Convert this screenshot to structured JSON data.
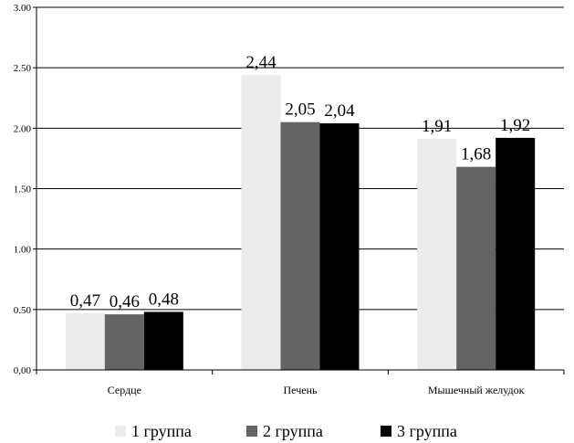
{
  "chart_data": {
    "type": "bar",
    "categories": [
      "Сердце",
      "Печень",
      "Мышечный желудок"
    ],
    "series": [
      {
        "name": "1 группа",
        "values": [
          0.47,
          2.44,
          1.91
        ],
        "labels": [
          "0,47",
          "2,44",
          "1,91"
        ],
        "color": "#ececec"
      },
      {
        "name": "2 группа",
        "values": [
          0.46,
          2.05,
          1.68
        ],
        "labels": [
          "0,46",
          "2,05",
          "1,68"
        ],
        "color": "#646464"
      },
      {
        "name": "3 группа",
        "values": [
          0.48,
          2.04,
          1.92
        ],
        "labels": [
          "0,48",
          "2,04",
          "1,92"
        ],
        "color": "#000000"
      }
    ],
    "yticks": [
      "0,00",
      "0.50",
      "1.00",
      "1.50",
      "2.00",
      "2.50",
      "3.00"
    ],
    "ylim": [
      0,
      3
    ],
    "grid": true,
    "legend_position": "bottom"
  }
}
